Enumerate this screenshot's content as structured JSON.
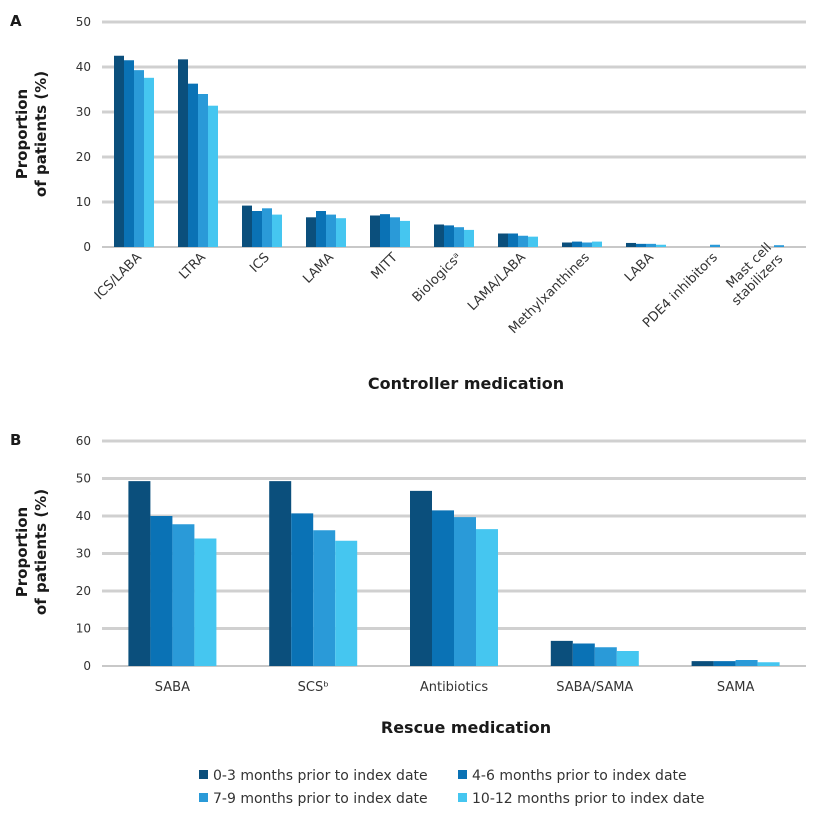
{
  "legend": [
    {
      "label": "0-3 months prior to index date",
      "color": "#0b4f7c"
    },
    {
      "label": "4-6 months prior to index date",
      "color": "#0a72b5"
    },
    {
      "label": "7-9 months prior to index date",
      "color": "#2a9ad8"
    },
    {
      "label": "10-12 months prior to index date",
      "color": "#45c6f0"
    }
  ],
  "chart_data": [
    {
      "panel": "A",
      "type": "bar",
      "ylabel_line1": "Proportion",
      "ylabel_line2": "of patients (%)",
      "xlabel": "Controller medication",
      "ylim": [
        0,
        50
      ],
      "yticks": [
        0,
        10,
        20,
        30,
        40,
        50
      ],
      "grid": true,
      "categories": [
        "ICS/LABA",
        "LTRA",
        "ICS",
        "LAMA",
        "MITT",
        "Biologicsᵃ",
        "LAMA/LABA",
        "Methylxanthines",
        "LABA",
        "PDE4 inhibitors",
        "Mast cell stabilizers"
      ],
      "series": [
        {
          "name": "0-3 months prior to index date",
          "values": [
            42.5,
            41.7,
            9.2,
            6.6,
            7.0,
            5.0,
            3.0,
            1.0,
            0.9,
            0.0,
            0.0
          ]
        },
        {
          "name": "4-6 months prior to index date",
          "values": [
            41.5,
            36.3,
            8.0,
            8.0,
            7.3,
            4.8,
            3.0,
            1.2,
            0.7,
            0.0,
            0.0
          ]
        },
        {
          "name": "7-9 months prior to index date",
          "values": [
            39.3,
            34.0,
            8.6,
            7.2,
            6.6,
            4.4,
            2.5,
            1.0,
            0.7,
            0.5,
            0.4
          ]
        },
        {
          "name": "10-12 months prior to index date",
          "values": [
            37.6,
            31.4,
            7.2,
            6.4,
            5.8,
            3.8,
            2.3,
            1.2,
            0.5,
            0.0,
            0.0
          ]
        }
      ]
    },
    {
      "panel": "B",
      "type": "bar",
      "ylabel_line1": "Proportion",
      "ylabel_line2": "of patients (%)",
      "xlabel": "Rescue medication",
      "ylim": [
        0,
        60
      ],
      "yticks": [
        0,
        10,
        20,
        30,
        40,
        50,
        60
      ],
      "grid": true,
      "categories": [
        "SABA",
        "SCSᵇ",
        "Antibiotics",
        "SABA/SAMA",
        "SAMA"
      ],
      "series": [
        {
          "name": "0-3 months prior to index date",
          "values": [
            49.3,
            49.3,
            46.7,
            6.7,
            1.3
          ]
        },
        {
          "name": "4-6 months prior to index date",
          "values": [
            40.0,
            40.7,
            41.5,
            6.0,
            1.3
          ]
        },
        {
          "name": "7-9 months prior to index date",
          "values": [
            37.8,
            36.2,
            39.7,
            5.0,
            1.6
          ]
        },
        {
          "name": "10-12 months prior to index date",
          "values": [
            34.0,
            33.4,
            36.5,
            4.0,
            1.0
          ]
        }
      ]
    }
  ]
}
